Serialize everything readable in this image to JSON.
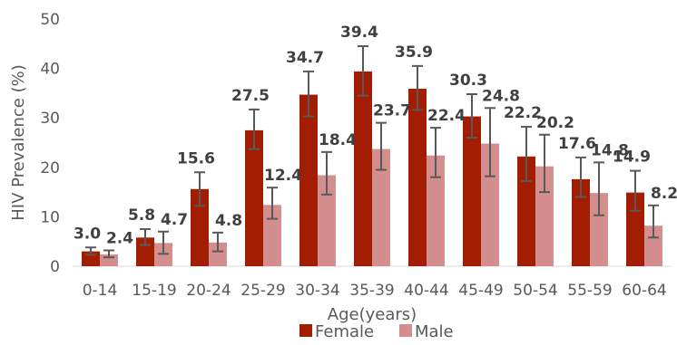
{
  "chart_data": {
    "type": "bar",
    "title": "",
    "xlabel": "Age(years)",
    "ylabel": "HIV Prevalence (%)",
    "ylim": [
      0,
      50
    ],
    "yticks": [
      "0",
      "10",
      "20",
      "30",
      "40",
      "50"
    ],
    "grid": false,
    "legend_position": "bottom",
    "categories": [
      "0-14",
      "15-19",
      "20-24",
      "25-29",
      "30-34",
      "35-39",
      "40-44",
      "45-49",
      "50-54",
      "55-59",
      "60-64"
    ],
    "series": [
      {
        "name": "Female",
        "color": "#A31D03",
        "values": [
          3.0,
          5.8,
          15.6,
          27.5,
          34.7,
          39.4,
          35.9,
          30.3,
          22.2,
          17.6,
          14.9
        ],
        "labels": [
          "3.0",
          "5.8",
          "15.6",
          "27.5",
          "34.7",
          "39.4",
          "35.9",
          "30.3",
          "22.2",
          "17.6",
          "14.9"
        ],
        "error_low": [
          2.3,
          4.3,
          12.2,
          23.7,
          30.3,
          34.5,
          31.6,
          26.0,
          17.2,
          14.0,
          11.2
        ],
        "error_high": [
          3.8,
          7.5,
          19.0,
          31.7,
          39.4,
          44.5,
          40.5,
          34.8,
          28.2,
          22.0,
          19.3
        ]
      },
      {
        "name": "Male",
        "color": "#D48E8E",
        "values": [
          2.4,
          4.7,
          4.8,
          12.4,
          18.4,
          23.7,
          22.4,
          24.8,
          20.2,
          14.8,
          8.2
        ],
        "labels": [
          "2.4",
          "4.7",
          "4.8",
          "12.4",
          "18.4",
          "23.7",
          "22.4",
          "24.8",
          "20.2",
          "14.8",
          "8.2"
        ],
        "error_low": [
          1.8,
          2.5,
          3.0,
          9.6,
          14.5,
          19.5,
          18.0,
          18.2,
          15.0,
          10.3,
          5.8
        ],
        "error_high": [
          3.2,
          7.0,
          6.8,
          15.9,
          23.1,
          29.0,
          28.0,
          32.0,
          26.6,
          21.0,
          12.3
        ]
      }
    ]
  }
}
